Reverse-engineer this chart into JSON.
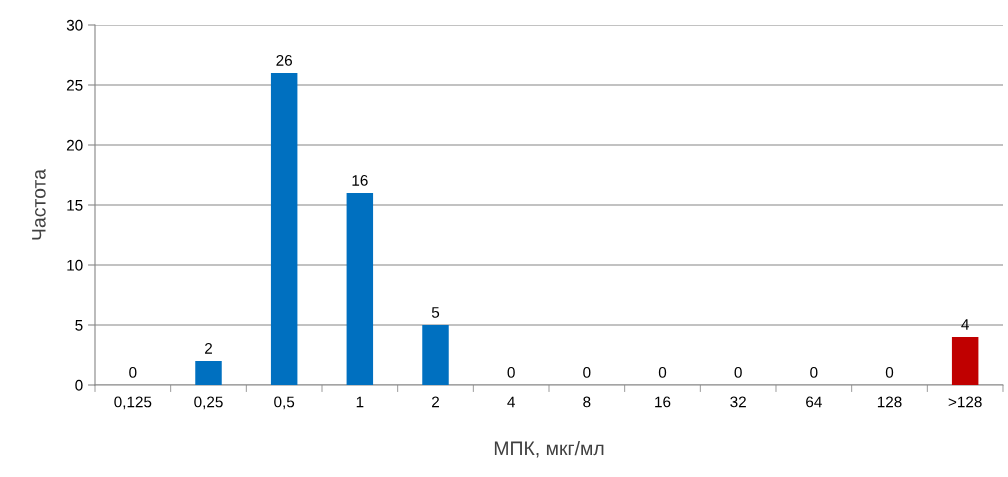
{
  "chart_data": {
    "type": "bar",
    "xlabel": "МПК, мкг/мл",
    "ylabel": "Частота",
    "categories": [
      "0,125",
      "0,25",
      "0,5",
      "1",
      "2",
      "4",
      "8",
      "16",
      "32",
      "64",
      "128",
      ">128"
    ],
    "values": [
      0,
      2,
      26,
      16,
      5,
      0,
      0,
      0,
      0,
      0,
      0,
      4
    ],
    "colors": [
      "#0070c0",
      "#0070c0",
      "#0070c0",
      "#0070c0",
      "#0070c0",
      "#0070c0",
      "#0070c0",
      "#0070c0",
      "#0070c0",
      "#0070c0",
      "#0070c0",
      "#c00000"
    ],
    "ylim": [
      0,
      30
    ],
    "yticks": [
      0,
      5,
      10,
      15,
      20,
      25,
      30
    ],
    "grid": "y",
    "data_labels": true
  }
}
